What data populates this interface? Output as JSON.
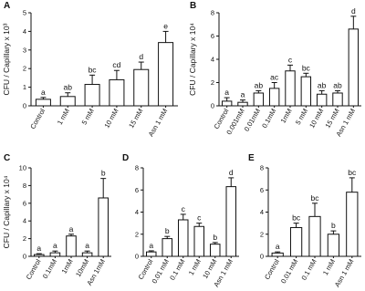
{
  "chart_data": [
    {
      "type": "bar",
      "panel": "A",
      "ylabel": "CFU / Capillary x 10³",
      "categories": [
        "Control",
        "1 mM",
        "5 mM",
        "10 mM",
        "15 mM",
        "Asn 1 mM"
      ],
      "values": [
        0.35,
        0.5,
        1.15,
        1.4,
        1.95,
        3.4
      ],
      "errors": [
        0.1,
        0.2,
        0.5,
        0.5,
        0.4,
        0.6
      ],
      "annotations": [
        "a",
        "ab",
        "bc",
        "cd",
        "d",
        "e"
      ],
      "ylim": [
        0,
        5
      ],
      "yticks": [
        0,
        1,
        2,
        3,
        4,
        5
      ],
      "color": "#ffffff"
    },
    {
      "type": "bar",
      "panel": "B",
      "ylabel": "CFU / Capillary x 10⁴",
      "categories": [
        "Control",
        "0.001mM",
        "0.01mM",
        "0.1mM",
        "1mM",
        "5 mM",
        "10 mM",
        "15 mM",
        "Asn 1 mM"
      ],
      "values": [
        0.4,
        0.3,
        1.1,
        1.5,
        3.0,
        2.5,
        1.0,
        1.1,
        6.6
      ],
      "errors": [
        0.3,
        0.2,
        0.2,
        0.5,
        0.5,
        0.3,
        0.3,
        0.2,
        1.1
      ],
      "annotations": [
        "a",
        "a",
        "ab",
        "ac",
        "c",
        "bc",
        "ab",
        "ab",
        "d"
      ],
      "ylim": [
        0,
        8
      ],
      "yticks": [
        0,
        2,
        4,
        6,
        8
      ],
      "color": "#ffffff"
    },
    {
      "type": "bar",
      "panel": "C",
      "ylabel": "CFU / Capillary x 10⁴",
      "categories": [
        "Control",
        "0.1mM",
        "1mM",
        "10mM",
        "Asn 1mM"
      ],
      "values": [
        0.2,
        0.4,
        2.3,
        0.4,
        6.6
      ],
      "errors": [
        0.1,
        0.2,
        0.2,
        0.2,
        2.2
      ],
      "annotations": [
        "a",
        "a",
        "a",
        "a",
        "b"
      ],
      "ylim": [
        0,
        10
      ],
      "yticks": [
        0,
        2,
        4,
        6,
        8,
        10
      ],
      "color": "#ffffff"
    },
    {
      "type": "bar",
      "panel": "D",
      "categories": [
        "Control",
        "0.01 mM",
        "0.1 mM",
        "1 mM",
        "10 mM",
        "Asn 1 mM"
      ],
      "values": [
        0.4,
        1.6,
        3.3,
        2.7,
        1.1,
        6.3
      ],
      "errors": [
        0.1,
        0.2,
        0.5,
        0.3,
        0.15,
        0.8
      ],
      "annotations": [
        "a",
        "b",
        "c",
        "c",
        "b",
        "d"
      ],
      "ylim": [
        0,
        8
      ],
      "yticks": [
        0,
        2,
        4,
        6,
        8
      ],
      "color": "#ffffff"
    },
    {
      "type": "bar",
      "panel": "E",
      "categories": [
        "Control",
        "0.01 mM",
        "0.1 mM",
        "1 mM",
        "Asn 1 mM"
      ],
      "values": [
        0.3,
        2.6,
        3.6,
        2.0,
        5.8
      ],
      "errors": [
        0.1,
        0.4,
        1.2,
        0.3,
        1.3
      ],
      "annotations": [
        "a",
        "bc",
        "bc",
        "b",
        "bc"
      ],
      "ylim": [
        0,
        8
      ],
      "yticks": [
        0,
        2,
        4,
        6,
        8
      ],
      "color": "#ffffff"
    }
  ]
}
